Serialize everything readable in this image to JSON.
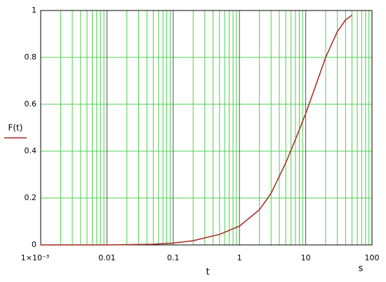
{
  "chart_data": {
    "type": "line",
    "xscale": "log",
    "grid": true,
    "minor_grid": true,
    "x": [
      0.001,
      0.01,
      0.02,
      0.05,
      0.1,
      0.2,
      0.5,
      1,
      2,
      3,
      5,
      7,
      10,
      15,
      20,
      30,
      40,
      50
    ],
    "series": [
      {
        "name": "F(t)",
        "color": "#a3281e",
        "values": [
          0,
          0,
          0.001,
          0.003,
          0.008,
          0.018,
          0.045,
          0.08,
          0.15,
          0.22,
          0.35,
          0.45,
          0.56,
          0.7,
          0.8,
          0.91,
          0.96,
          0.98
        ]
      }
    ],
    "xlim": [
      0.001,
      100
    ],
    "ylim": [
      0,
      1
    ],
    "xticks": [
      {
        "value": 0.001,
        "label": "1×10⁻³"
      },
      0.01,
      0.1,
      1,
      10,
      100
    ],
    "yticks": [
      0,
      0.2,
      0.4,
      0.6,
      0.8,
      1
    ],
    "xlabel": "t",
    "annotations": [
      "s"
    ]
  }
}
